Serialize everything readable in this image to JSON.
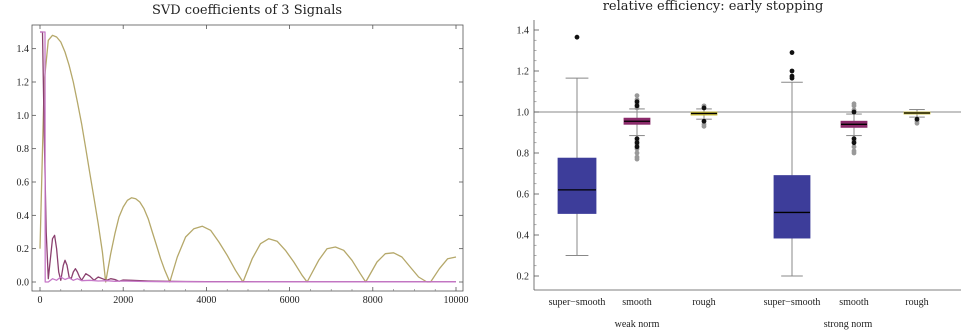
{
  "chart_data": [
    {
      "type": "line",
      "title": "SVD coefficients of 3 Signals",
      "xlabel": "",
      "ylabel": "",
      "xlim": [
        0,
        10000
      ],
      "ylim": [
        -0.03,
        1.55
      ],
      "xticks": [
        0,
        2000,
        4000,
        6000,
        8000,
        10000
      ],
      "yticks": [
        0.0,
        0.2,
        0.4,
        0.6,
        0.8,
        1.0,
        1.2,
        1.4
      ],
      "ytick_labels": [
        "0.0",
        "0.2",
        "0.4",
        "0.6",
        "0.8",
        "1.0",
        "1.2",
        "1.4"
      ],
      "grid": false,
      "series": [
        {
          "color": "#b5a86a",
          "x": [
            0,
            100,
            200,
            300,
            400,
            500,
            600,
            700,
            800,
            900,
            1000,
            1100,
            1200,
            1300,
            1400,
            1500,
            1580,
            1700,
            1800,
            1900,
            2000,
            2100,
            2200,
            2300,
            2400,
            2500,
            2600,
            2700,
            2800,
            2900,
            3000,
            3120,
            3300,
            3500,
            3700,
            3900,
            4100,
            4300,
            4500,
            4700,
            4880,
            5100,
            5300,
            5500,
            5700,
            5900,
            6100,
            6300,
            6420,
            6700,
            6900,
            7100,
            7300,
            7500,
            7700,
            7830,
            8100,
            8300,
            8500,
            8700,
            8900,
            9100,
            9300,
            9390,
            9600,
            9800,
            10000
          ],
          "values": [
            0.2,
            1.2,
            1.45,
            1.48,
            1.47,
            1.44,
            1.38,
            1.3,
            1.2,
            1.08,
            0.95,
            0.8,
            0.65,
            0.5,
            0.35,
            0.18,
            0.0,
            0.17,
            0.29,
            0.39,
            0.45,
            0.49,
            0.505,
            0.5,
            0.48,
            0.44,
            0.38,
            0.3,
            0.22,
            0.14,
            0.07,
            0.0,
            0.15,
            0.27,
            0.32,
            0.335,
            0.31,
            0.24,
            0.16,
            0.07,
            0.0,
            0.14,
            0.23,
            0.26,
            0.245,
            0.19,
            0.12,
            0.04,
            0.0,
            0.13,
            0.2,
            0.21,
            0.19,
            0.13,
            0.05,
            0.0,
            0.12,
            0.17,
            0.175,
            0.15,
            0.09,
            0.03,
            0.0,
            0.0,
            0.08,
            0.14,
            0.15
          ]
        },
        {
          "color": "#8a3f6e",
          "x": [
            0,
            20,
            60,
            100,
            150,
            200,
            250,
            300,
            350,
            400,
            450,
            500,
            560,
            600,
            650,
            700,
            750,
            800,
            850,
            900,
            950,
            1000,
            1100,
            1200,
            1300,
            1400,
            1500,
            1600,
            1700,
            1800,
            1900,
            2000,
            2200,
            2400,
            2600,
            2800,
            3000,
            3500,
            4000,
            5000,
            6000,
            7000,
            8000,
            9000,
            10000
          ],
          "values": [
            1.5,
            1.5,
            1.5,
            0.9,
            0.3,
            0.02,
            0.14,
            0.26,
            0.28,
            0.2,
            0.06,
            0.01,
            0.1,
            0.13,
            0.1,
            0.03,
            0.02,
            0.06,
            0.08,
            0.06,
            0.03,
            0.01,
            0.05,
            0.035,
            0.01,
            0.03,
            0.02,
            0.01,
            0.02,
            0.015,
            0.005,
            0.012,
            0.01,
            0.008,
            0.006,
            0.005,
            0.004,
            0.003,
            0.002,
            0.002,
            0.001,
            0.001,
            0.001,
            0.001,
            0.001
          ]
        },
        {
          "color": "#c678c8",
          "x": [
            0,
            40,
            80,
            120,
            125,
            160,
            200,
            300,
            400,
            500,
            600,
            700,
            800,
            900,
            1000,
            1200,
            1400,
            1600,
            1800,
            2000,
            2500,
            3000,
            3500,
            4000,
            5000,
            6000,
            7000,
            8000,
            9000,
            10000
          ],
          "values": [
            1.5,
            1.5,
            1.5,
            1.5,
            0.0,
            0.0,
            0.0,
            0.02,
            0.01,
            0.03,
            0.015,
            0.025,
            0.01,
            0.02,
            0.008,
            0.01,
            0.006,
            0.008,
            0.004,
            0.006,
            0.003,
            0.002,
            0.002,
            0.001,
            0.001,
            0.001,
            0.001,
            0.001,
            0.001,
            0.001
          ]
        }
      ]
    },
    {
      "type": "box",
      "title": "relative  efficiency: early stopping",
      "xlabel": "",
      "ylabel": "",
      "ylim": [
        0.12,
        1.46
      ],
      "yticks": [
        0.2,
        0.4,
        0.6,
        0.8,
        1.0,
        1.2,
        1.4
      ],
      "ytick_labels": [
        "0.2",
        "0.4",
        "0.6",
        "0.8",
        "1.0",
        "1.2",
        "1.4"
      ],
      "reference_line": 1.0,
      "groups": [
        {
          "label": "weak norm",
          "members": [
            0,
            1,
            2
          ]
        },
        {
          "label": "strong norm",
          "members": [
            3,
            4,
            5
          ]
        }
      ],
      "boxes": [
        {
          "label": "super−smooth",
          "color": "#3d3d9a",
          "median_color": "#000000",
          "whisker_low": 0.3,
          "q1": 0.505,
          "median": 0.62,
          "q3": 0.775,
          "whisker_high": 1.165,
          "outliers_black": [
            1.365
          ],
          "outliers_gray": []
        },
        {
          "label": "smooth",
          "color": "#8a2a6a",
          "median_color": "#000000",
          "whisker_low": 0.885,
          "q1": 0.94,
          "median": 0.955,
          "q3": 0.97,
          "whisker_high": 1.015,
          "outliers_black": [
            0.87,
            0.85,
            0.83,
            1.03,
            1.05
          ],
          "outliers_gray": [
            0.82,
            0.8,
            0.78,
            0.77,
            0.86,
            0.84,
            1.06,
            1.08,
            1.04,
            1.02
          ]
        },
        {
          "label": "rough",
          "color": "#c9bd3c",
          "median_color": "#000000",
          "whisker_low": 0.965,
          "q1": 0.985,
          "median": 0.993,
          "q3": 1.0,
          "whisker_high": 1.015,
          "outliers_black": [
            1.02,
            0.955
          ],
          "outliers_gray": [
            0.94,
            0.93,
            1.03
          ]
        },
        {
          "label": "super−smooth",
          "color": "#3d3d9a",
          "median_color": "#000000",
          "whisker_low": 0.2,
          "q1": 0.385,
          "median": 0.51,
          "q3": 0.69,
          "whisker_high": 1.145,
          "outliers_black": [
            1.29,
            1.2,
            1.175,
            1.165
          ],
          "outliers_gray": []
        },
        {
          "label": "smooth",
          "color": "#8a2a6a",
          "median_color": "#000000",
          "whisker_low": 0.885,
          "q1": 0.925,
          "median": 0.94,
          "q3": 0.955,
          "whisker_high": 0.99,
          "outliers_black": [
            0.87,
            0.85,
            1.0
          ],
          "outliers_gray": [
            0.83,
            0.81,
            0.8,
            0.86,
            1.01,
            1.03,
            1.04
          ]
        },
        {
          "label": "rough",
          "color": "#c9bd3c",
          "median_color": "#000000",
          "whisker_low": 0.975,
          "q1": 0.99,
          "median": 0.995,
          "q3": 1.0,
          "whisker_high": 1.012,
          "outliers_black": [
            0.965
          ],
          "outliers_gray": [
            0.955,
            0.945
          ]
        }
      ]
    }
  ]
}
